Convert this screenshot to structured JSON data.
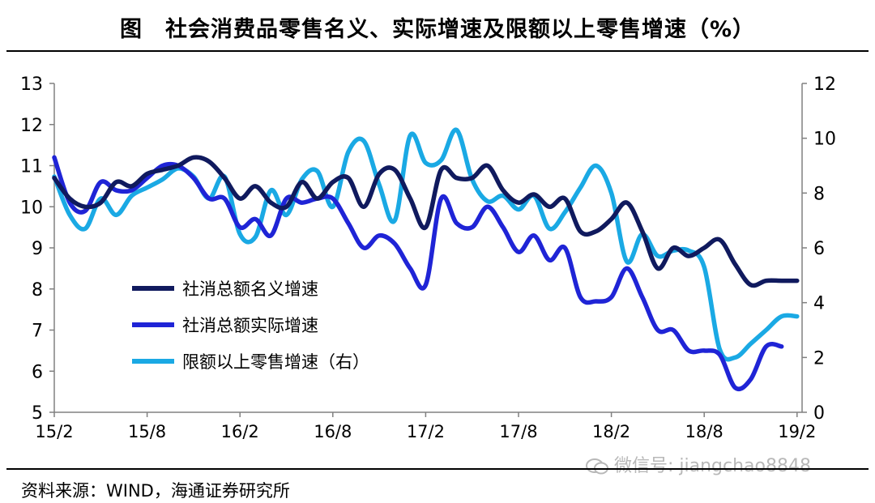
{
  "title": "图　社会消费品零售名义、实际增速及限额以上零售增速（%）",
  "source": "资料来源：WIND，海通证券研究所",
  "watermark": "微信号: jiangchao8848",
  "chart_data": {
    "type": "line",
    "x_labels": [
      "15/2",
      "15/8",
      "16/2",
      "16/8",
      "17/2",
      "17/8",
      "18/2",
      "18/8",
      "19/2"
    ],
    "left_axis": {
      "ylim": [
        5,
        13
      ],
      "ticks": [
        5,
        6,
        7,
        8,
        9,
        10,
        11,
        12,
        13
      ]
    },
    "right_axis": {
      "ylim": [
        0,
        12
      ],
      "ticks": [
        0,
        2,
        4,
        6,
        8,
        10,
        12
      ]
    },
    "legend_position": "center-left",
    "series": [
      {
        "name": "社消总额名义增速",
        "axis": "left",
        "color": "#101a5e",
        "x": [
          "15/2",
          "15/3",
          "15/4",
          "15/5",
          "15/6",
          "15/7",
          "15/8",
          "15/9",
          "15/10",
          "15/11",
          "15/12",
          "16/1",
          "16/2",
          "16/3",
          "16/4",
          "16/5",
          "16/6",
          "16/7",
          "16/8",
          "16/9",
          "16/10",
          "16/11",
          "16/12",
          "17/1",
          "17/2",
          "17/3",
          "17/4",
          "17/5",
          "17/6",
          "17/7",
          "17/8",
          "17/9",
          "17/10",
          "17/11",
          "17/12",
          "18/1",
          "18/2",
          "18/3",
          "18/4",
          "18/5",
          "18/6",
          "18/7",
          "18/8",
          "18/9",
          "18/10",
          "18/11",
          "18/12",
          "19/1",
          "19/2"
        ],
        "values": [
          10.7,
          10.2,
          10.0,
          10.1,
          10.6,
          10.5,
          10.8,
          10.9,
          11.0,
          11.2,
          11.1,
          10.7,
          10.2,
          10.5,
          10.1,
          10.0,
          10.6,
          10.2,
          10.6,
          10.7,
          10.0,
          10.8,
          10.9,
          10.2,
          9.5,
          10.9,
          10.7,
          10.7,
          11.0,
          10.4,
          10.1,
          10.3,
          10.0,
          10.2,
          9.4,
          9.4,
          9.7,
          10.1,
          9.4,
          8.5,
          9.0,
          8.8,
          9.0,
          9.2,
          8.6,
          8.1,
          8.2,
          8.2,
          8.2
        ]
      },
      {
        "name": "社消总额实际增速",
        "axis": "left",
        "color": "#1f24d6",
        "x": [
          "15/2",
          "15/3",
          "15/4",
          "15/5",
          "15/6",
          "15/7",
          "15/8",
          "15/9",
          "15/10",
          "15/11",
          "15/12",
          "16/1",
          "16/2",
          "16/3",
          "16/4",
          "16/5",
          "16/6",
          "16/7",
          "16/8",
          "16/9",
          "16/10",
          "16/11",
          "16/12",
          "17/1",
          "17/2",
          "17/3",
          "17/4",
          "17/5",
          "17/6",
          "17/7",
          "17/8",
          "17/9",
          "17/10",
          "17/11",
          "17/12",
          "18/1",
          "18/2",
          "18/3",
          "18/4",
          "18/5",
          "18/6",
          "18/7",
          "18/8",
          "18/9",
          "18/10",
          "18/11",
          "18/12",
          "19/1"
        ],
        "values": [
          11.2,
          10.1,
          9.9,
          10.6,
          10.4,
          10.4,
          10.7,
          11.0,
          11.0,
          10.7,
          10.2,
          10.2,
          9.5,
          9.7,
          9.3,
          10.2,
          10.1,
          10.2,
          10.2,
          9.6,
          9.0,
          9.3,
          9.1,
          8.5,
          8.1,
          10.2,
          9.6,
          9.5,
          10.0,
          9.5,
          8.9,
          9.3,
          8.7,
          9.0,
          7.8,
          7.7,
          7.8,
          8.5,
          7.8,
          7.0,
          7.0,
          6.5,
          6.5,
          6.4,
          5.6,
          5.8,
          6.6,
          6.6
        ]
      },
      {
        "name": "限额以上零售增速（右）",
        "axis": "right",
        "color": "#1aa9e4",
        "x": [
          "15/2",
          "15/3",
          "15/4",
          "15/5",
          "15/6",
          "15/7",
          "15/8",
          "15/9",
          "15/10",
          "15/11",
          "15/12",
          "16/1",
          "16/2",
          "16/3",
          "16/4",
          "16/5",
          "16/6",
          "16/7",
          "16/8",
          "16/9",
          "16/10",
          "16/11",
          "16/12",
          "17/1",
          "17/2",
          "17/3",
          "17/4",
          "17/5",
          "17/6",
          "17/7",
          "17/8",
          "17/9",
          "17/10",
          "17/11",
          "17/12",
          "18/1",
          "18/2",
          "18/3",
          "18/4",
          "18/5",
          "18/6",
          "18/7",
          "18/8",
          "18/9",
          "18/10",
          "18/11",
          "18/12",
          "19/1",
          "19/2"
        ],
        "values": [
          8.6,
          7.2,
          6.7,
          7.8,
          7.2,
          7.9,
          8.2,
          8.5,
          8.9,
          8.6,
          7.8,
          8.6,
          6.5,
          6.4,
          8.1,
          7.2,
          8.5,
          8.8,
          7.5,
          9.5,
          9.9,
          8.3,
          7.0,
          10.1,
          9.1,
          9.2,
          10.3,
          8.5,
          7.7,
          7.9,
          7.4,
          7.9,
          6.7,
          7.3,
          8.2,
          9.0,
          8.0,
          5.5,
          6.5,
          5.7,
          5.9,
          5.9,
          5.3,
          2.3,
          2.0,
          2.5,
          3.0,
          3.5,
          3.5
        ]
      }
    ]
  }
}
